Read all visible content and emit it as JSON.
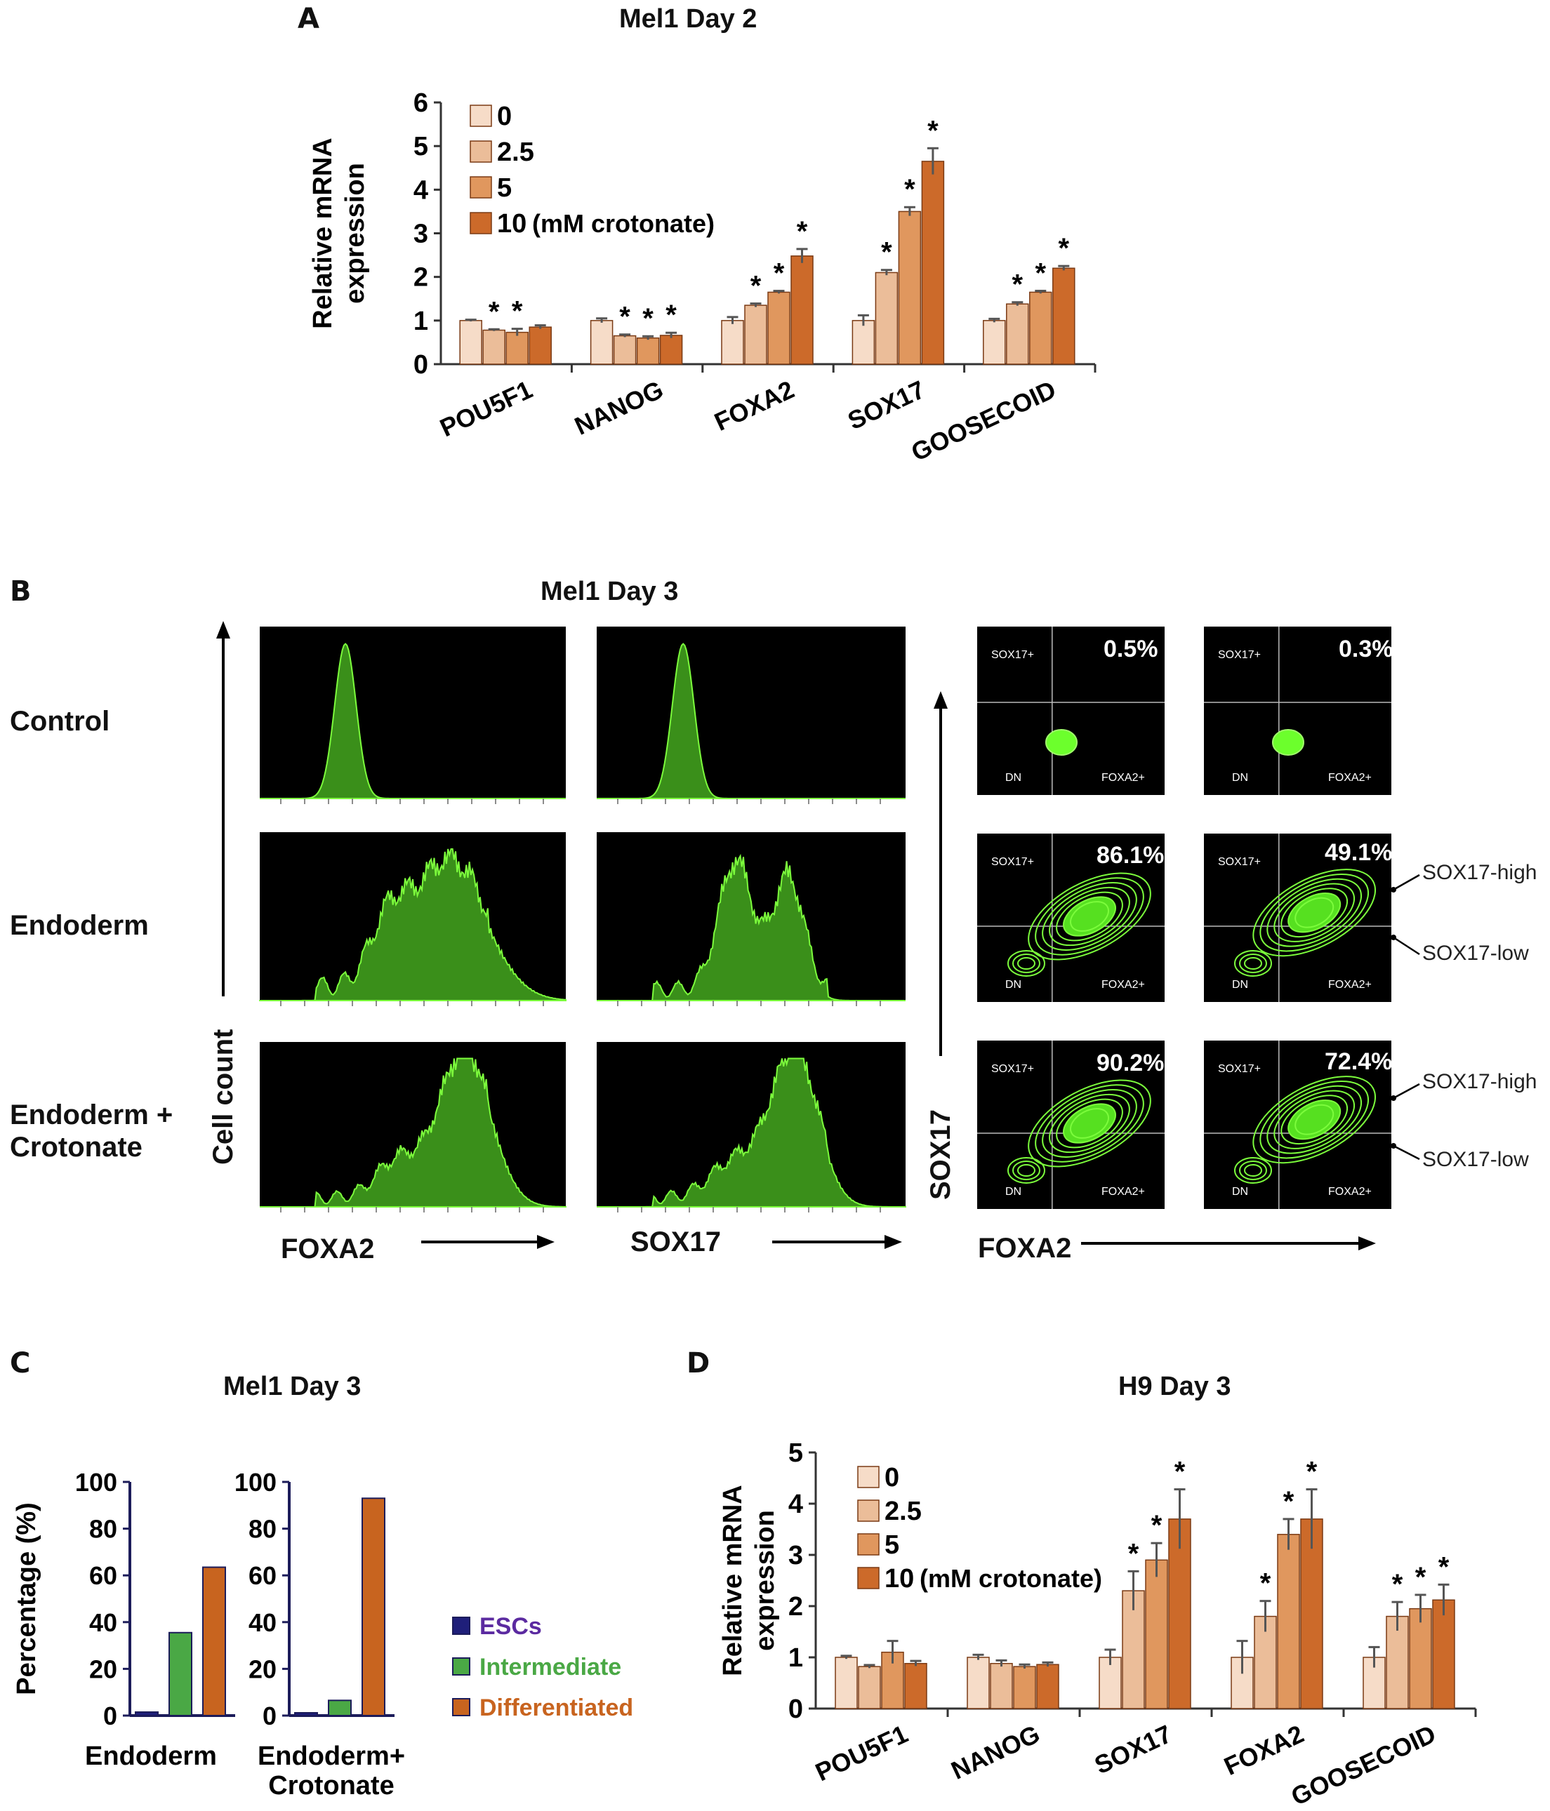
{
  "colors": {
    "c0": "#f6dcc8",
    "c2_5": "#ebbd99",
    "c5": "#e0975e",
    "c10": "#cc6a2a",
    "esc": "#1f1f7a",
    "intermediate": "#4aa845",
    "differentiated": "#c8641f",
    "flow_fill": "#3a8f1a",
    "flow_line": "#7cfc3c"
  },
  "panel_labels": {
    "a": "A",
    "b": "B",
    "c": "C",
    "d": "D"
  },
  "panel_b": {
    "title": "Mel1 Day 3",
    "row_labels": [
      "Control",
      "Endoderm",
      "Endoderm +\nCrotonate"
    ],
    "y_axis_label": "Cell count",
    "hist_x_labels": [
      "FOXA2",
      "SOX17"
    ],
    "scatter_x_label": "FOXA2",
    "scatter_y_label": "SOX17",
    "quadrant_labels": {
      "upper_left": "SOX17+",
      "lower_left": "DN",
      "lower_right": "FOXA2+"
    },
    "percentages": [
      [
        "0.5%",
        "0.3%"
      ],
      [
        "86.1%",
        "49.1%"
      ],
      [
        "90.2%",
        "72.4%"
      ]
    ],
    "annotations": {
      "high": "SOX17-high",
      "low": "SOX17-low"
    }
  },
  "chart_data": [
    {
      "id": "A",
      "type": "bar",
      "title": "Mel1 Day 2",
      "ylabel": "Relative mRNA\nexpression",
      "ylim": [
        0,
        6
      ],
      "yticks": [
        0,
        1,
        2,
        3,
        4,
        5,
        6
      ],
      "categories": [
        "POU5F1",
        "NANOG",
        "FOXA2",
        "SOX17",
        "GOOSECOID"
      ],
      "series": [
        {
          "name": "0",
          "values": [
            1.0,
            1.0,
            1.0,
            1.0,
            1.0
          ],
          "errors": [
            0.02,
            0.05,
            0.08,
            0.12,
            0.04
          ],
          "sig": [
            false,
            false,
            false,
            false,
            false
          ]
        },
        {
          "name": "2.5",
          "values": [
            0.78,
            0.65,
            1.35,
            2.1,
            1.38
          ],
          "errors": [
            0.02,
            0.03,
            0.04,
            0.06,
            0.04
          ],
          "sig": [
            true,
            true,
            true,
            true,
            true
          ]
        },
        {
          "name": "5",
          "values": [
            0.73,
            0.6,
            1.65,
            3.5,
            1.65
          ],
          "errors": [
            0.08,
            0.04,
            0.03,
            0.1,
            0.03
          ],
          "sig": [
            true,
            true,
            true,
            true,
            true
          ]
        },
        {
          "name": "10",
          "values": [
            0.85,
            0.66,
            2.48,
            4.65,
            2.2
          ],
          "errors": [
            0.04,
            0.06,
            0.16,
            0.3,
            0.05
          ],
          "sig": [
            false,
            true,
            true,
            true,
            true
          ]
        }
      ],
      "legend_suffix": "(mM crotonate)",
      "legend_position": "top-left",
      "sig_marker": "*"
    },
    {
      "id": "C",
      "type": "bar",
      "title": "Mel1 Day 3",
      "ylabel": "Percentage (%)",
      "ylim": [
        0,
        100
      ],
      "yticks": [
        0,
        20,
        40,
        60,
        80,
        100
      ],
      "panels": [
        {
          "label": "Endoderm",
          "values": [
            1.5,
            35.5,
            63.5
          ]
        },
        {
          "label": "Endoderm+\nCrotonate",
          "values": [
            1.2,
            6.5,
            93.0
          ]
        }
      ],
      "legend": [
        "ESCs",
        "Intermediate",
        "Differentiated"
      ],
      "legend_position": "right"
    },
    {
      "id": "D",
      "type": "bar",
      "title": "H9 Day 3",
      "ylabel": "Relative mRNA\nexpression",
      "ylim": [
        0,
        5
      ],
      "yticks": [
        0,
        1,
        2,
        3,
        4,
        5
      ],
      "categories": [
        "POU5F1",
        "NANOG",
        "SOX17",
        "FOXA2",
        "GOOSECOID"
      ],
      "series": [
        {
          "name": "0",
          "values": [
            1.0,
            1.0,
            1.0,
            1.0,
            1.0
          ],
          "errors": [
            0.03,
            0.05,
            0.15,
            0.32,
            0.2
          ],
          "sig": [
            false,
            false,
            false,
            false,
            false
          ]
        },
        {
          "name": "2.5",
          "values": [
            0.82,
            0.88,
            2.3,
            1.8,
            1.8
          ],
          "errors": [
            0.03,
            0.06,
            0.38,
            0.3,
            0.28
          ],
          "sig": [
            false,
            false,
            true,
            true,
            true
          ]
        },
        {
          "name": "5",
          "values": [
            1.1,
            0.82,
            2.9,
            3.4,
            1.95
          ],
          "errors": [
            0.22,
            0.04,
            0.33,
            0.3,
            0.27
          ],
          "sig": [
            false,
            false,
            true,
            true,
            true
          ]
        },
        {
          "name": "10",
          "values": [
            0.88,
            0.86,
            3.7,
            3.7,
            2.12
          ],
          "errors": [
            0.05,
            0.04,
            0.58,
            0.58,
            0.3
          ],
          "sig": [
            false,
            false,
            true,
            true,
            true
          ]
        }
      ],
      "legend_suffix": "(mM crotonate)",
      "legend_position": "top-left",
      "sig_marker": "*"
    }
  ]
}
